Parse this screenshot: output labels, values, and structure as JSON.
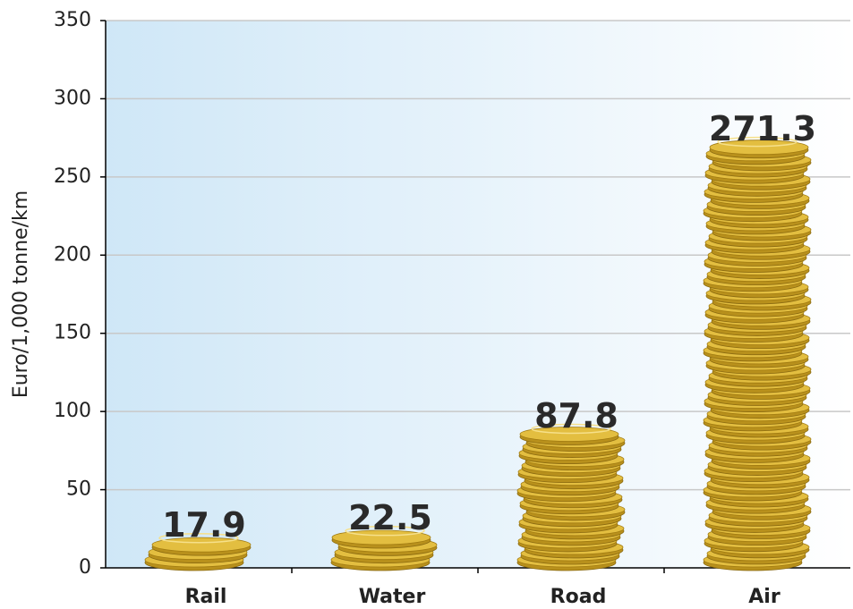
{
  "chart_data": {
    "type": "bar",
    "y_label": "Euro/1,000 tonne/km",
    "categories": [
      "Rail",
      "Water",
      "Road",
      "Air"
    ],
    "values": [
      17.9,
      22.5,
      87.8,
      271.3
    ],
    "color": "#e3be40",
    "ylim": [
      0,
      350
    ],
    "yticks": [
      0,
      50,
      100,
      150,
      200,
      250,
      300,
      350
    ],
    "grid": true
  }
}
